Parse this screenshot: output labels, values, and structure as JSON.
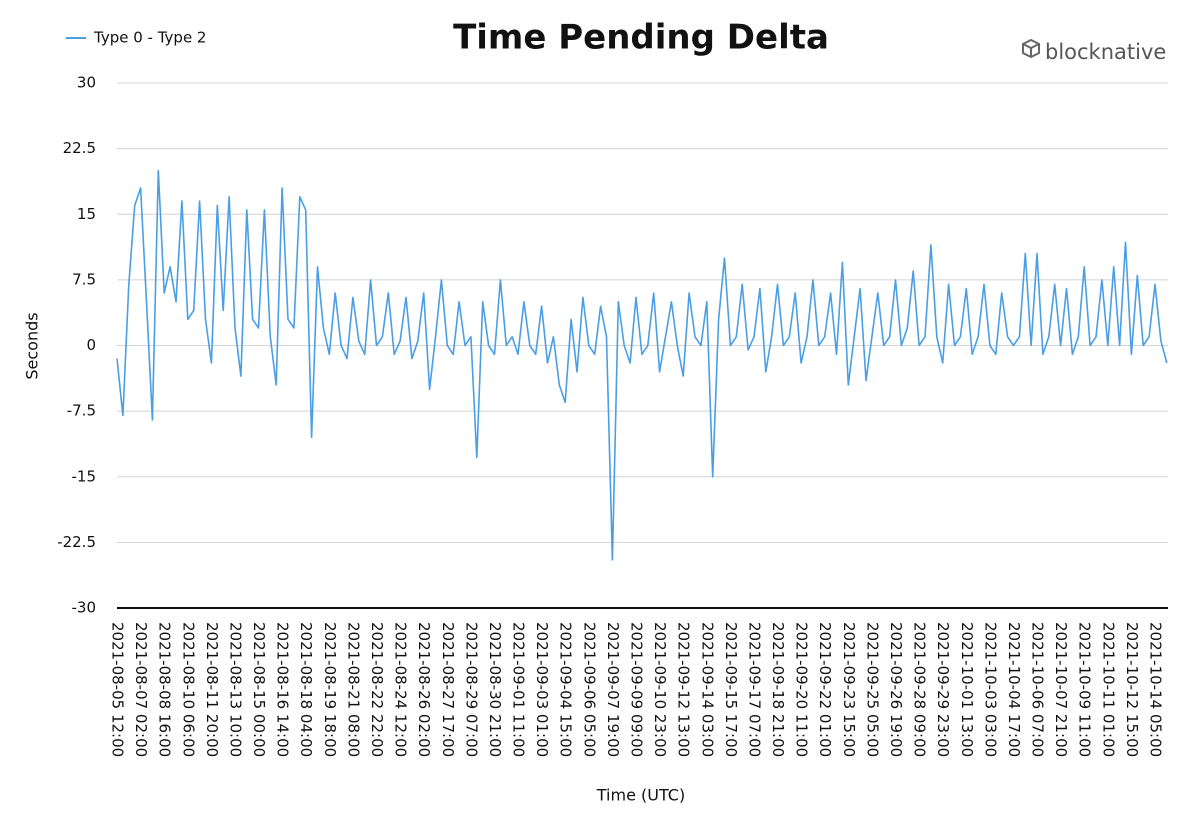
{
  "branding": "blocknative",
  "chart_data": {
    "type": "line",
    "title": "Time Pending Delta",
    "x_label": "Time (UTC)",
    "y_label": "Seconds",
    "ylim": [
      -30,
      30
    ],
    "yticks": [
      -30,
      -22.5,
      -15,
      -7.5,
      0,
      7.5,
      15,
      22.5,
      30
    ],
    "grid": true,
    "legend": "top-left",
    "categories": [
      "2021-08-05 12:00",
      null,
      null,
      null,
      "2021-08-07 02:00",
      null,
      null,
      null,
      "2021-08-08 16:00",
      null,
      null,
      null,
      "2021-08-10 06:00",
      null,
      null,
      null,
      "2021-08-11 20:00",
      null,
      null,
      null,
      "2021-08-13 10:00",
      null,
      null,
      null,
      "2021-08-15 00:00",
      null,
      null,
      null,
      "2021-08-16 14:00",
      null,
      null,
      null,
      "2021-08-18 04:00",
      null,
      null,
      null,
      "2021-08-19 18:00",
      null,
      null,
      null,
      "2021-08-21 08:00",
      null,
      null,
      null,
      "2021-08-22 22:00",
      null,
      null,
      null,
      "2021-08-24 12:00",
      null,
      null,
      null,
      "2021-08-26 02:00",
      null,
      null,
      null,
      "2021-08-27 17:00",
      null,
      null,
      null,
      "2021-08-29 07:00",
      null,
      null,
      null,
      "2021-08-30 21:00",
      null,
      null,
      null,
      "2021-09-01 11:00",
      null,
      null,
      null,
      "2021-09-03 01:00",
      null,
      null,
      null,
      "2021-09-04 15:00",
      null,
      null,
      null,
      "2021-09-06 05:00",
      null,
      null,
      null,
      "2021-09-07 19:00",
      null,
      null,
      null,
      "2021-09-09 09:00",
      null,
      null,
      null,
      "2021-09-10 23:00",
      null,
      null,
      null,
      "2021-09-12 13:00",
      null,
      null,
      null,
      "2021-09-14 03:00",
      null,
      null,
      null,
      "2021-09-15 17:00",
      null,
      null,
      null,
      "2021-09-17 07:00",
      null,
      null,
      null,
      "2021-09-18 21:00",
      null,
      null,
      null,
      "2021-09-20 11:00",
      null,
      null,
      null,
      "2021-09-22 01:00",
      null,
      null,
      null,
      "2021-09-23 15:00",
      null,
      null,
      null,
      "2021-09-25 05:00",
      null,
      null,
      null,
      "2021-09-26 19:00",
      null,
      null,
      null,
      "2021-09-28 09:00",
      null,
      null,
      null,
      "2021-09-29 23:00",
      null,
      null,
      null,
      "2021-10-01 13:00",
      null,
      null,
      null,
      "2021-10-03 03:00",
      null,
      null,
      null,
      "2021-10-04 17:00",
      null,
      null,
      null,
      "2021-10-06 07:00",
      null,
      null,
      null,
      "2021-10-07 21:00",
      null,
      null,
      null,
      "2021-10-09 11:00",
      null,
      null,
      null,
      "2021-10-11 01:00",
      null,
      null,
      null,
      "2021-10-12 15:00",
      null,
      null,
      null,
      "2021-10-14 05:00",
      null,
      null
    ],
    "series": [
      {
        "name": "Type 0 - Type 2",
        "color": "#4a9ee6",
        "values": [
          -1.5,
          -8,
          7,
          16,
          18,
          5,
          -8.5,
          20,
          6,
          9,
          5,
          16.5,
          3,
          4,
          16.5,
          3,
          -2,
          16,
          4,
          17,
          2,
          -3.5,
          15.5,
          3,
          2,
          15.5,
          1,
          -4.5,
          18,
          3,
          2,
          17,
          15.5,
          -10.5,
          9,
          2,
          -1,
          6,
          0,
          -1.5,
          5.5,
          0.5,
          -1,
          7.5,
          0,
          1,
          6,
          -1,
          0.5,
          5.5,
          -1.5,
          0.5,
          6,
          -5,
          1,
          7.5,
          0,
          -1,
          5,
          0,
          1,
          -12.8,
          5,
          0,
          -1,
          7.5,
          0,
          1,
          -1,
          5,
          0,
          -1,
          4.5,
          -2,
          1,
          -4.5,
          -6.5,
          3,
          -3,
          5.5,
          0,
          -1,
          4.5,
          1,
          -24.5,
          5,
          0,
          -2,
          5.5,
          -1,
          0,
          6,
          -3,
          1,
          5,
          0,
          -3.5,
          6,
          1,
          0,
          5,
          -15,
          3,
          10,
          0,
          1,
          7,
          -0.5,
          1,
          6.5,
          -3,
          1,
          7,
          0,
          1,
          6,
          -2,
          1,
          7.5,
          0,
          1,
          6,
          -1,
          9.5,
          -4.5,
          1,
          6.5,
          -4,
          1,
          6,
          0,
          1,
          7.5,
          0,
          2,
          8.5,
          0,
          1,
          11.5,
          1,
          -2,
          7,
          0,
          1,
          6.5,
          -1,
          1,
          7,
          0,
          -1,
          6,
          1,
          0,
          1,
          10.5,
          0,
          10.5,
          -1,
          1,
          7,
          0,
          6.5,
          -1,
          1,
          9,
          0,
          1,
          7.5,
          0,
          9,
          0,
          11.8,
          -1,
          8,
          0,
          1,
          7,
          0.5,
          -2
        ]
      }
    ]
  }
}
